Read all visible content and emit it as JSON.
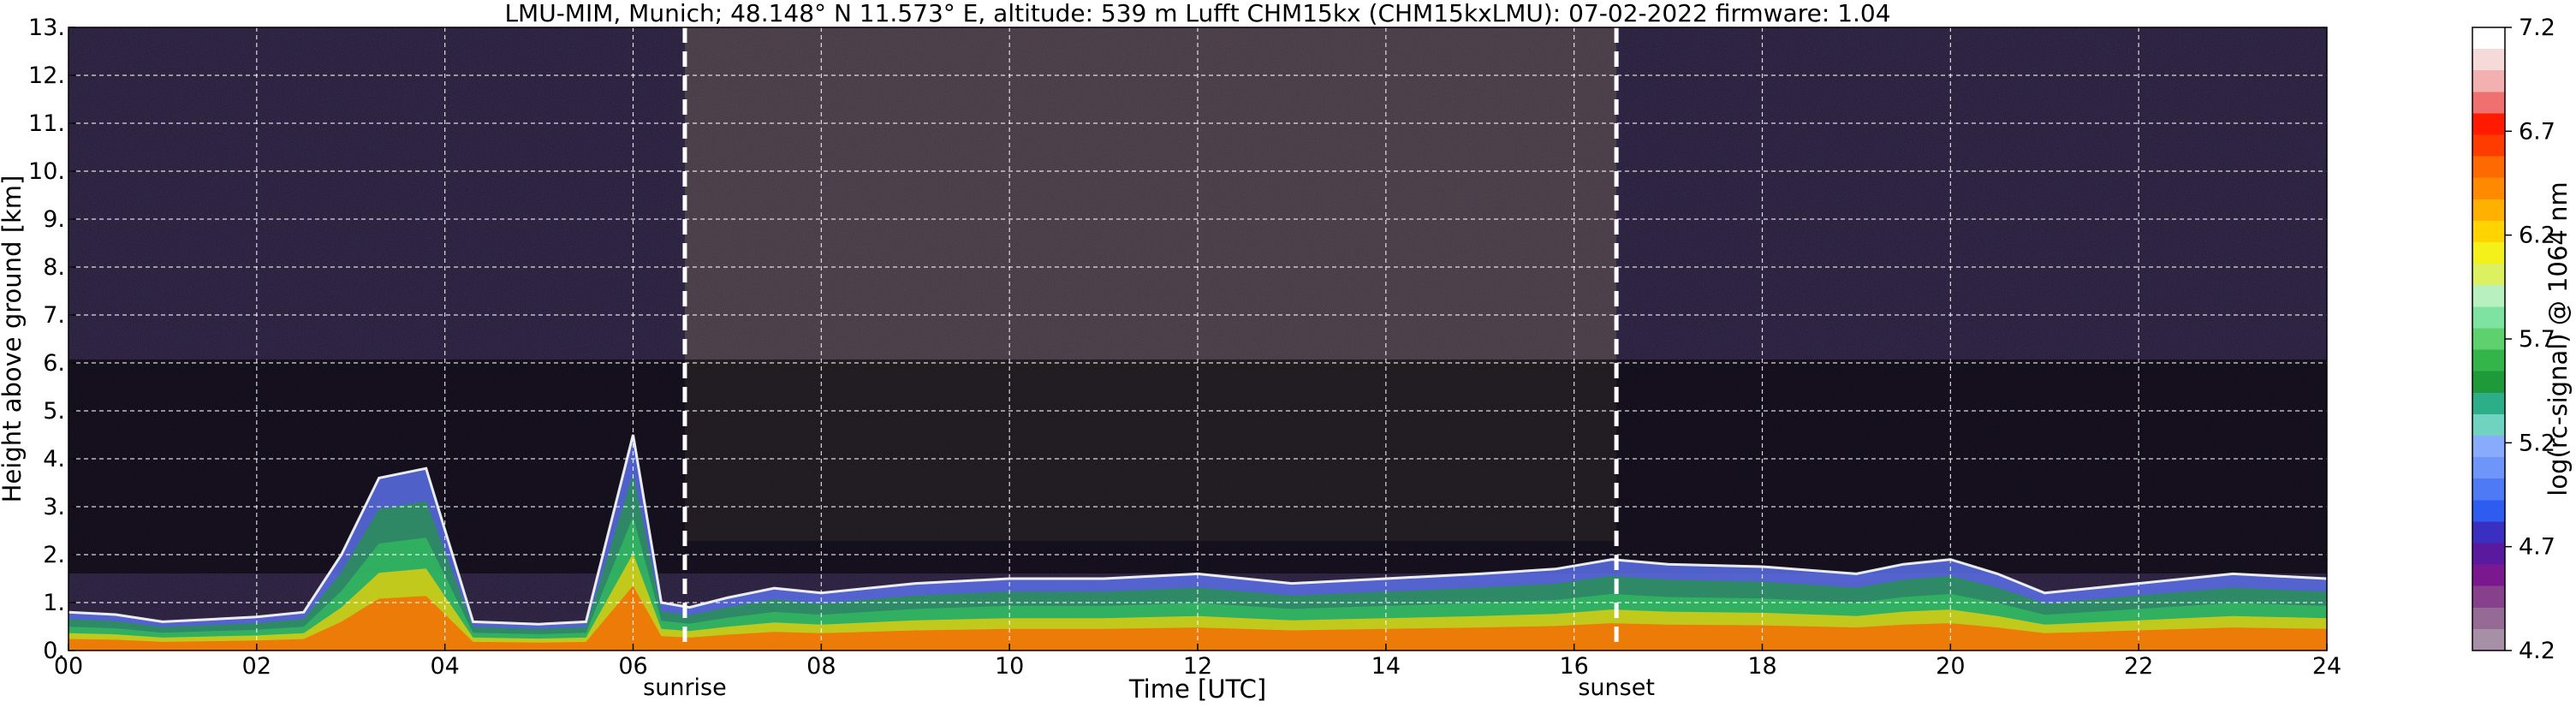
{
  "title": "LMU-MIM, Munich; 48.148° N 11.573° E, altitude: 539 m    Lufft CHM15kx (CHM15kxLMU): 07-02-2022    firmware: 1.04",
  "chart_data": {
    "type": "heatmap",
    "title": "LMU-MIM, Munich; 48.148° N 11.573° E, altitude: 539 m    Lufft CHM15kx (CHM15kxLMU): 07-02-2022    firmware: 1.04",
    "xlabel": "Time [UTC]",
    "ylabel": "Height above ground [km]",
    "xlim": [
      0,
      24
    ],
    "ylim": [
      0,
      13
    ],
    "x_ticks": [
      0,
      2,
      4,
      6,
      8,
      10,
      12,
      14,
      16,
      18,
      20,
      22,
      24
    ],
    "x_tick_labels": [
      "00",
      "02",
      "04",
      "06",
      "08",
      "10",
      "12",
      "14",
      "16",
      "18",
      "20",
      "22",
      "24"
    ],
    "y_ticks": [
      0,
      1,
      2,
      3,
      4,
      5,
      6,
      7,
      8,
      9,
      10,
      11,
      12,
      13
    ],
    "y_tick_labels": [
      "0.",
      "1.",
      "2.",
      "3.",
      "4.",
      "5.",
      "6.",
      "7.",
      "8.",
      "9.",
      "10.",
      "11.",
      "12.",
      "13."
    ],
    "grid": true,
    "annotations": [
      {
        "label": "sunrise",
        "x": 6.55
      },
      {
        "label": "sunset",
        "x": 16.45
      }
    ],
    "colorbar": {
      "label": "log(rc-signal) @ 1064 nm",
      "range": [
        4.2,
        7.2
      ],
      "ticks": [
        4.2,
        4.7,
        5.2,
        5.7,
        6.2,
        6.7,
        7.2
      ],
      "tick_labels": [
        "4.2",
        "4.7",
        "5.2",
        "5.7",
        "6.2",
        "6.7",
        "7.2"
      ],
      "colors": [
        "#a690a6",
        "#956a95",
        "#87408c",
        "#7a1890",
        "#5a1aa0",
        "#3a2fc0",
        "#2e5cf0",
        "#4f7af6",
        "#6e95fa",
        "#88abfb",
        "#6fd3c0",
        "#2cae88",
        "#1f9a3a",
        "#33b54a",
        "#5fd06e",
        "#7ee3a0",
        "#b8f0c0",
        "#ddf060",
        "#f4f01a",
        "#ffd400",
        "#ffb000",
        "#ff8a00",
        "#ff6a00",
        "#ff3c00",
        "#ff1a00",
        "#f07070",
        "#f3b0b0",
        "#f6dada",
        "#ffffff"
      ]
    },
    "backscatter_profile": {
      "hours": [
        0,
        0.5,
        1,
        1.5,
        2,
        2.5,
        2.9,
        3.3,
        3.8,
        4.3,
        5,
        5.5,
        6,
        6.3,
        6.6,
        7,
        7.5,
        8,
        9,
        10,
        11,
        12,
        13,
        14,
        15,
        15.8,
        16.4,
        17,
        18,
        19,
        19.5,
        20,
        20.5,
        21,
        21.5,
        22,
        23,
        24
      ],
      "boundary_layer_top_km": [
        0.8,
        0.75,
        0.6,
        0.65,
        0.7,
        0.8,
        2.0,
        3.6,
        3.8,
        0.6,
        0.55,
        0.6,
        4.5,
        1.0,
        0.9,
        1.1,
        1.3,
        1.2,
        1.4,
        1.5,
        1.5,
        1.6,
        1.4,
        1.5,
        1.6,
        1.7,
        1.9,
        1.8,
        1.75,
        1.6,
        1.8,
        1.9,
        1.6,
        1.2,
        1.3,
        1.4,
        1.6,
        1.5
      ]
    }
  }
}
